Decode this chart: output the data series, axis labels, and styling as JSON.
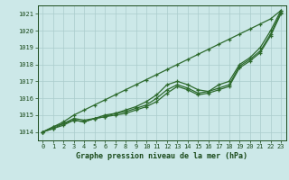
{
  "x": [
    0,
    1,
    2,
    3,
    4,
    5,
    6,
    7,
    8,
    9,
    10,
    11,
    12,
    13,
    14,
    15,
    16,
    17,
    18,
    19,
    20,
    21,
    22,
    23
  ],
  "series_straight": [
    1014.0,
    1014.3,
    1014.6,
    1015.0,
    1015.3,
    1015.6,
    1015.9,
    1016.2,
    1016.5,
    1016.8,
    1017.1,
    1017.4,
    1017.7,
    1018.0,
    1018.3,
    1018.6,
    1018.9,
    1019.2,
    1019.5,
    1019.8,
    1020.1,
    1020.4,
    1020.7,
    1021.2
  ],
  "series_upper": [
    1014.0,
    1014.3,
    1014.5,
    1014.8,
    1014.7,
    1014.8,
    1015.0,
    1015.1,
    1015.3,
    1015.5,
    1015.8,
    1016.2,
    1016.8,
    1017.0,
    1016.8,
    1016.5,
    1016.4,
    1016.8,
    1017.0,
    1018.0,
    1018.4,
    1019.0,
    1020.0,
    1021.2
  ],
  "series_mid1": [
    1014.0,
    1014.2,
    1014.5,
    1014.7,
    1014.6,
    1014.8,
    1014.9,
    1015.1,
    1015.2,
    1015.4,
    1015.6,
    1016.0,
    1016.5,
    1016.8,
    1016.6,
    1016.3,
    1016.4,
    1016.6,
    1016.8,
    1017.9,
    1018.3,
    1018.8,
    1019.8,
    1021.1
  ],
  "series_lower": [
    1014.0,
    1014.2,
    1014.4,
    1014.7,
    1014.6,
    1014.8,
    1014.9,
    1015.0,
    1015.1,
    1015.3,
    1015.5,
    1015.8,
    1016.3,
    1016.7,
    1016.5,
    1016.2,
    1016.3,
    1016.5,
    1016.7,
    1017.8,
    1018.2,
    1018.7,
    1019.7,
    1021.0
  ],
  "line_color": "#2d6a2d",
  "marker": "+",
  "bg_color": "#cce8e8",
  "grid_color": "#aacccc",
  "xlabel": "Graphe pression niveau de la mer (hPa)",
  "xlabel_color": "#1a4a1a",
  "tick_color": "#1a4a1a",
  "ylim": [
    1013.5,
    1021.5
  ],
  "yticks": [
    1014,
    1015,
    1016,
    1017,
    1018,
    1019,
    1020,
    1021
  ],
  "xticks": [
    0,
    1,
    2,
    3,
    4,
    5,
    6,
    7,
    8,
    9,
    10,
    11,
    12,
    13,
    14,
    15,
    16,
    17,
    18,
    19,
    20,
    21,
    22,
    23
  ]
}
